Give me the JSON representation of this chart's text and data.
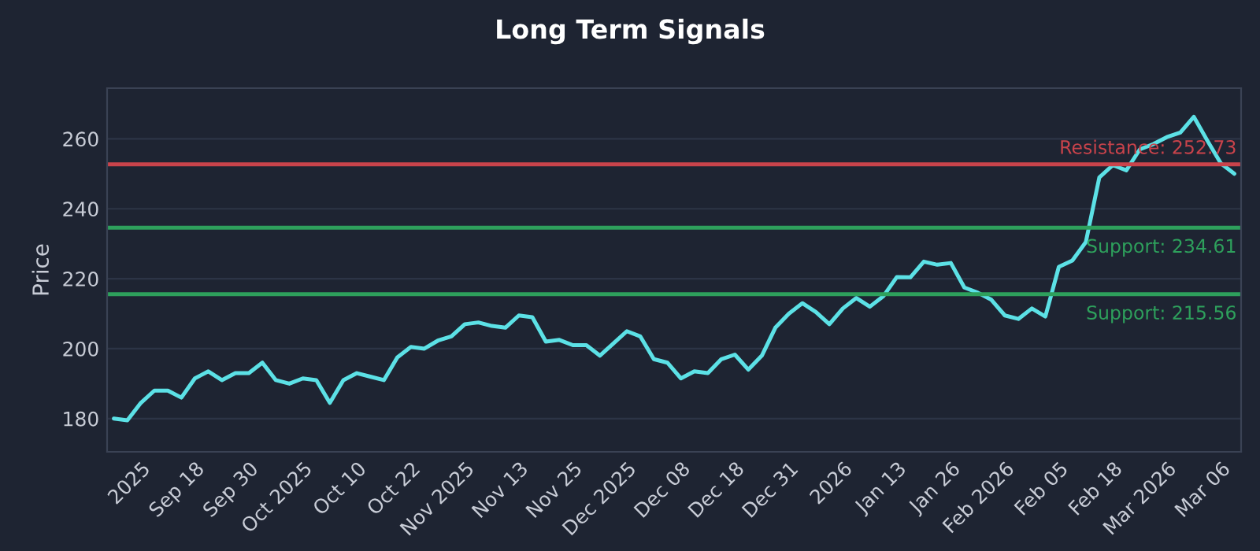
{
  "chart_data": {
    "type": "line",
    "title": "Long Term Signals",
    "ylabel": "Price",
    "categories": [
      null,
      null,
      "2025",
      null,
      null,
      null,
      "Sep 18",
      null,
      null,
      null,
      "Sep 30",
      null,
      null,
      null,
      "Oct 2025",
      null,
      null,
      null,
      "Oct 10",
      null,
      null,
      null,
      "Oct 22",
      null,
      null,
      null,
      "Nov 2025",
      null,
      null,
      null,
      "Nov 13",
      null,
      null,
      null,
      "Nov 25",
      null,
      null,
      null,
      "Dec 2025",
      null,
      null,
      null,
      "Dec 08",
      null,
      null,
      null,
      "Dec 18",
      null,
      null,
      null,
      "Dec 31",
      null,
      null,
      null,
      "2026",
      null,
      null,
      null,
      "Jan 13",
      null,
      null,
      null,
      "Jan 26",
      null,
      null,
      null,
      "Feb 2026",
      null,
      null,
      null,
      "Feb 05",
      null,
      null,
      null,
      "Feb 18",
      null,
      null,
      null,
      "Mar 2026",
      null,
      null,
      null,
      "Mar 06",
      null
    ],
    "series": [
      {
        "color": "#5ce1e6",
        "values": [
          180,
          179.5,
          184.5,
          188,
          188,
          186,
          191.5,
          193.5,
          191,
          193,
          193,
          196,
          191,
          190,
          191.5,
          191,
          184.5,
          191,
          193,
          192,
          191,
          197.5,
          200.5,
          200,
          202.3,
          203.5,
          207,
          207.5,
          206.5,
          206,
          209.5,
          209,
          202,
          202.5,
          201,
          201,
          198,
          201.5,
          205,
          203.5,
          197,
          196,
          191.5,
          193.5,
          193,
          197,
          198.3,
          194,
          198,
          206,
          210,
          213,
          210.5,
          207,
          211.5,
          214.5,
          212,
          215,
          220.5,
          220.4,
          224.9,
          224,
          224.5,
          217.5,
          216,
          214,
          209.5,
          208.5,
          211.5,
          209.2,
          223.4,
          225.2,
          230.5,
          249,
          252.5,
          251,
          257,
          258.5,
          260.5,
          261.8,
          266.3,
          259.5,
          253,
          250
        ]
      }
    ],
    "ylim": [
      170.5,
      274.5
    ],
    "yticks": [
      180,
      200,
      220,
      240,
      260
    ],
    "grid": "y",
    "legend": false,
    "marker": "none",
    "line_style": "solid",
    "ref_lines": [
      {
        "axis": "y",
        "value": 252.73,
        "label": "Resistance: 252.73",
        "color": "#c9434b"
      },
      {
        "axis": "y",
        "value": 234.61,
        "label": "Support: 234.61",
        "color": "#2ea05c"
      },
      {
        "axis": "y",
        "value": 215.56,
        "label": "Support: 215.56",
        "color": "#2ea05c"
      }
    ]
  }
}
